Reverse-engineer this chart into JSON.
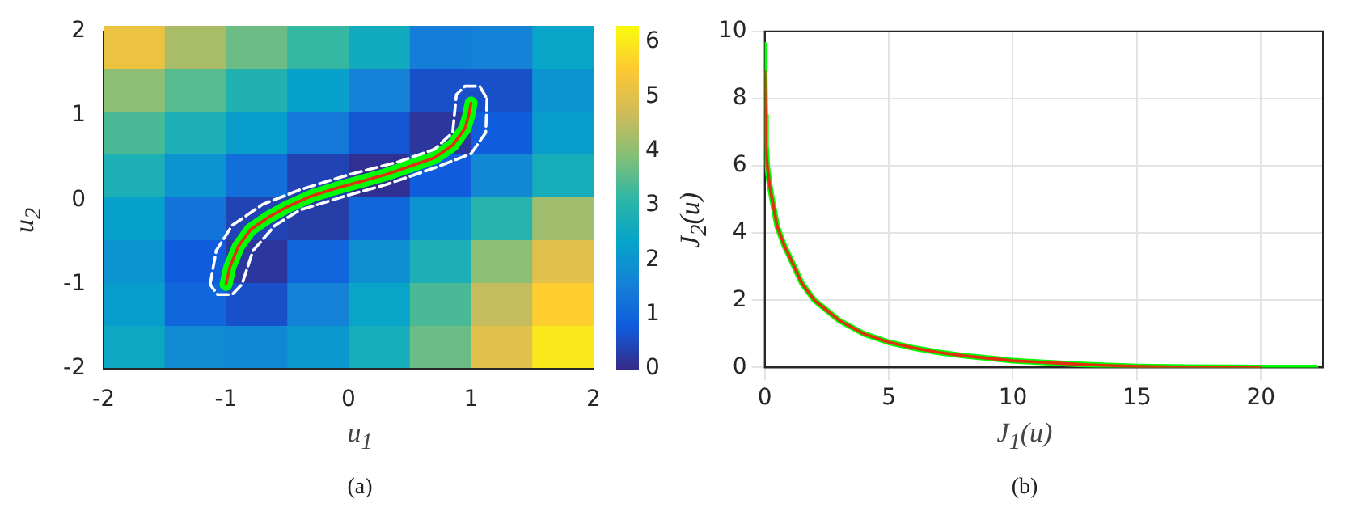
{
  "chart_data": [
    {
      "type": "heatmap",
      "categories": [
        null,
        null,
        null,
        null,
        null,
        null,
        null,
        null
      ],
      "y_categories": [
        null,
        null,
        null,
        null,
        null,
        null,
        null,
        null
      ],
      "cells": [
        [
          5.2,
          4.3,
          3.7,
          3.2,
          2.6,
          1.5,
          1.6,
          2.4
        ],
        [
          4.0,
          3.5,
          2.9,
          2.3,
          1.6,
          0.6,
          0.6,
          2.0
        ],
        [
          3.4,
          2.8,
          2.2,
          1.4,
          0.7,
          0.2,
          0.8,
          2.2
        ],
        [
          2.8,
          2.0,
          1.2,
          0.4,
          0.1,
          0.8,
          1.7,
          2.7
        ],
        [
          2.3,
          1.3,
          0.4,
          0.3,
          1.0,
          2.0,
          3.0,
          4.2
        ],
        [
          2.0,
          0.8,
          0.2,
          1.0,
          1.9,
          2.8,
          4.0,
          5.0
        ],
        [
          2.2,
          1.0,
          0.6,
          1.6,
          2.4,
          3.4,
          4.6,
          5.6
        ],
        [
          2.5,
          1.8,
          1.7,
          2.1,
          2.7,
          3.7,
          5.0,
          6.0
        ]
      ],
      "clim": [
        0,
        6.3
      ],
      "cticks": [
        0,
        1,
        2,
        3,
        4,
        5,
        6
      ]
    },
    {
      "type": "line",
      "xlabel": "u$_{1}$",
      "ylabel": "u$_{2}$",
      "annotations": [
        "(a)"
      ],
      "xlim": [
        -2,
        2
      ],
      "xticks": [
        -2,
        -1,
        0,
        1,
        2
      ],
      "ylim": [
        -2,
        2
      ],
      "yticks": [
        -2,
        -1,
        0,
        1,
        2
      ],
      "series": [
        {
          "type": "line",
          "color": "#00ff00",
          "x": [
            -1,
            -0.97,
            -0.9,
            -0.8,
            -0.65,
            -0.5,
            -0.3,
            -0.1,
            0.1,
            0.3,
            0.5,
            0.7,
            0.85,
            0.95,
            0.98,
            1
          ],
          "values": [
            -1,
            -0.8,
            -0.55,
            -0.35,
            -0.2,
            -0.08,
            0.05,
            0.14,
            0.22,
            0.3,
            0.4,
            0.5,
            0.65,
            0.85,
            1.0,
            1.15
          ]
        },
        {
          "type": "line",
          "color": "#e03010",
          "x": [
            -1,
            -0.97,
            -0.9,
            -0.8,
            -0.65,
            -0.5,
            -0.3,
            -0.1,
            0.1,
            0.3,
            0.5,
            0.7,
            0.85,
            0.95,
            0.98,
            1
          ],
          "values": [
            -1,
            -0.8,
            -0.55,
            -0.35,
            -0.2,
            -0.08,
            0.05,
            0.14,
            0.22,
            0.3,
            0.4,
            0.5,
            0.65,
            0.85,
            1.0,
            1.15
          ]
        },
        {
          "type": "line",
          "color": "#ffffff",
          "line_style": "dashed",
          "x": [
            -1.13,
            -1.08,
            -0.95,
            -0.7,
            -0.4,
            0,
            0.4,
            0.7,
            0.85,
            0.88,
            0.95,
            1.07,
            1.13
          ],
          "values": [
            -1.0,
            -0.6,
            -0.3,
            -0.05,
            0.12,
            0.3,
            0.45,
            0.6,
            0.8,
            1.25,
            1.35,
            1.35,
            1.2
          ]
        },
        {
          "type": "line",
          "color": "#ffffff",
          "line_style": "dashed",
          "x": [
            1.13,
            1.12,
            1.0,
            0.7,
            0.3,
            0,
            -0.4,
            -0.6,
            -0.78,
            -0.87,
            -0.95,
            -1.07,
            -1.13
          ],
          "values": [
            1.2,
            0.8,
            0.55,
            0.38,
            0.18,
            0.06,
            -0.12,
            -0.3,
            -0.6,
            -1.0,
            -1.12,
            -1.12,
            -1.0
          ]
        }
      ]
    },
    {
      "type": "line",
      "xlabel": "J$_{1}$(u)",
      "ylabel": "J$_{2}$(u)",
      "annotations": [
        "(b)"
      ],
      "grid": true,
      "xlim": [
        0,
        22.5
      ],
      "xticks": [
        0,
        5,
        10,
        15,
        20
      ],
      "ylim": [
        0,
        10
      ],
      "yticks": [
        0,
        2,
        4,
        6,
        8,
        10
      ],
      "series": [
        {
          "color": "#00ff00",
          "x": [
            0,
            0,
            0.02,
            0.05,
            0.1,
            0.2,
            0.3,
            0.5,
            0.8,
            1,
            1.5,
            2,
            2.5,
            3,
            4,
            5,
            6,
            7,
            8,
            10,
            12,
            13,
            15,
            17,
            20,
            22.2
          ],
          "values": [
            9.6,
            8.8,
            7.5,
            6.6,
            6,
            5.4,
            5,
            4.2,
            3.6,
            3.3,
            2.5,
            2.0,
            1.7,
            1.4,
            1.0,
            0.75,
            0.58,
            0.45,
            0.35,
            0.2,
            0.12,
            0.08,
            0.03,
            0.01,
            0,
            0
          ]
        },
        {
          "color": "#e03010",
          "x": [
            0,
            0.02,
            0.05,
            0.1,
            0.2,
            0.3,
            0.5,
            0.8,
            1,
            1.5,
            2,
            2.5,
            3,
            4,
            5,
            6,
            7,
            8,
            10,
            12,
            13,
            15,
            17,
            20
          ],
          "values": [
            8.8,
            7.5,
            6.6,
            6,
            5.4,
            5,
            4.2,
            3.6,
            3.3,
            2.5,
            2.0,
            1.7,
            1.4,
            1.0,
            0.75,
            0.58,
            0.45,
            0.35,
            0.2,
            0.12,
            0.08,
            0.03,
            0.01,
            0
          ]
        }
      ]
    }
  ]
}
